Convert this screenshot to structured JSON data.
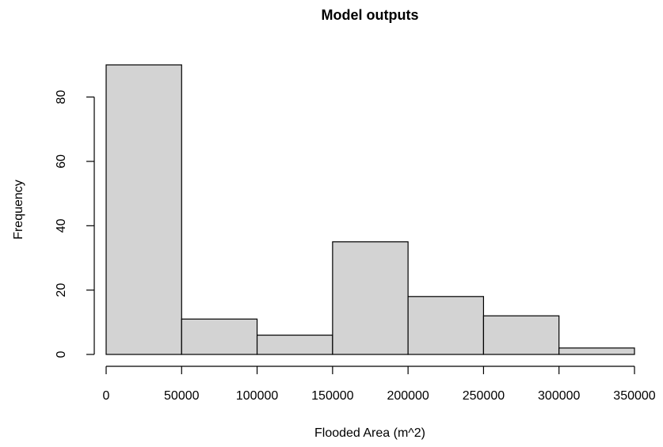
{
  "chart_data": {
    "type": "bar",
    "title": "Model outputs",
    "xlabel": "Flooded Area (m^2)",
    "ylabel": "Frequency",
    "bins": [
      {
        "start": 0,
        "end": 50000,
        "value": 90
      },
      {
        "start": 50000,
        "end": 100000,
        "value": 11
      },
      {
        "start": 100000,
        "end": 150000,
        "value": 6
      },
      {
        "start": 150000,
        "end": 200000,
        "value": 35
      },
      {
        "start": 200000,
        "end": 250000,
        "value": 18
      },
      {
        "start": 250000,
        "end": 300000,
        "value": 12
      },
      {
        "start": 300000,
        "end": 350000,
        "value": 2
      }
    ],
    "x_ticks": [
      0,
      50000,
      100000,
      150000,
      200000,
      250000,
      300000,
      350000
    ],
    "x_tick_labels": [
      "0",
      "50000",
      "100000",
      "150000",
      "200000",
      "250000",
      "300000",
      "350000"
    ],
    "y_ticks": [
      0,
      20,
      40,
      60,
      80
    ],
    "y_tick_labels": [
      "0",
      "20",
      "40",
      "60",
      "80"
    ],
    "xlim": [
      0,
      350000
    ],
    "ylim": [
      0,
      90
    ],
    "grid": false,
    "colors": {
      "bar_fill": "#d3d3d3",
      "bar_stroke": "#000000",
      "axis": "#000000",
      "background": "#ffffff"
    }
  }
}
